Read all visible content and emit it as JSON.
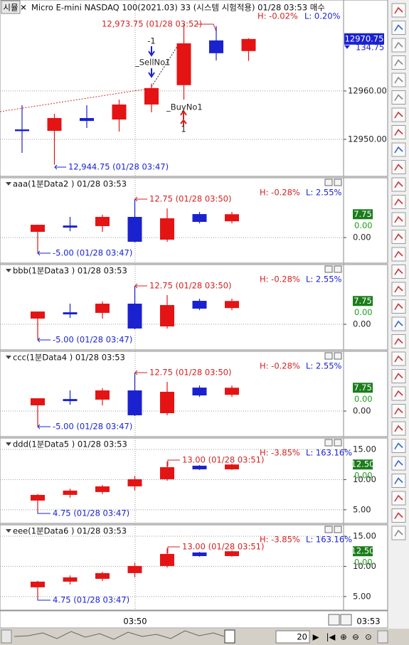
{
  "window": {
    "tab": "시뮬"
  },
  "chart_data": [
    {
      "type": "candlestick",
      "title": "Micro E-mini NASDAQ 100(2021.03) 33 (시스템 시험적용) 01/28 03:53 매수",
      "high_change": "H: -0.02%",
      "low_change": "L: 0.20%",
      "open": [
        12952.06,
        12951.76,
        12954.4,
        12954.1,
        12957.2,
        12961.2,
        12970.45,
        12968.25
      ],
      "high": [
        12957.06,
        12955.3,
        12957.06,
        12958.2,
        12961.5,
        12973.75,
        12973.4,
        12970.9
      ],
      "low": [
        12947.2,
        12944.75,
        12952.35,
        12951.6,
        12955.6,
        12958.2,
        12966.3,
        12966.2
      ],
      "close": [
        12951.76,
        12954.4,
        12953.8,
        12957.2,
        12960.6,
        12969.85,
        12967.8,
        12970.75
      ],
      "ylim": [
        12942.35,
        12978.8
      ],
      "yticks": [
        {
          "value": 12950,
          "label": "12950.00"
        },
        {
          "value": 12960,
          "label": "12960.00"
        }
      ],
      "last": {
        "value": 12970.75,
        "label": "12970.75"
      },
      "change": 134.75,
      "annotations": [
        "12,973.75 (01/28 03:52)",
        "12,944.75 (01/28 03:47)",
        "-1",
        "_SellNo1",
        "_BuyNo1",
        "1"
      ],
      "up_color": "#e41414",
      "down_color": "#1a22d0",
      "grid": true
    },
    {
      "type": "candlestick",
      "title": "aaa(1분Data2 ) 01/28 03:53",
      "high_change": "H: -0.28%",
      "low_change": "L: 2.55%",
      "open": [
        1.9,
        4.0,
        3.8,
        6.86,
        -0.7,
        7.8,
        5.4
      ],
      "high": [
        4.25,
        6.86,
        7.6,
        12.75,
        9.7,
        8.5,
        8.5
      ],
      "low": [
        -5,
        2.1,
        1.9,
        -1.65,
        -1.4,
        4.7,
        4.7
      ],
      "close": [
        4.25,
        3.3,
        6.86,
        -1.4,
        6.4,
        5.2,
        7.75
      ],
      "ylim": [
        -8.5,
        17.5
      ],
      "yticks": [
        {
          "value": 0,
          "label": "0.00"
        }
      ],
      "last": {
        "value": 7.75,
        "label": "7.75"
      },
      "signal": {
        "value": 0,
        "label": "0.00"
      },
      "annotations": [
        "12.75 (01/28 03:50)",
        "-5.00 (01/28 03:47)"
      ],
      "up_color": "#e41414",
      "down_color": "#1a22d0",
      "grid": true
    },
    {
      "type": "candlestick",
      "title": "bbb(1분Data3 ) 01/28 03:53",
      "high_change": "H: -0.28%",
      "low_change": "L: 2.55%",
      "open": [
        1.9,
        4.0,
        3.8,
        6.86,
        -0.7,
        7.8,
        5.4
      ],
      "high": [
        4.25,
        6.86,
        7.6,
        12.75,
        9.7,
        8.5,
        8.5
      ],
      "low": [
        -5,
        2.1,
        1.9,
        -1.65,
        -1.4,
        4.7,
        4.7
      ],
      "close": [
        4.25,
        3.3,
        6.86,
        -1.4,
        6.4,
        5.2,
        7.75
      ],
      "ylim": [
        -8.5,
        17.5
      ],
      "yticks": [
        {
          "value": 0,
          "label": "0.00"
        }
      ],
      "last": {
        "value": 7.75,
        "label": "7.75"
      },
      "signal": {
        "value": 0,
        "label": "0.00"
      },
      "annotations": [
        "12.75 (01/28 03:50)",
        "-5.00 (01/28 03:47)"
      ],
      "up_color": "#e41414",
      "down_color": "#1a22d0",
      "grid": true
    },
    {
      "type": "candlestick",
      "title": "ccc(1분Data4 ) 01/28 03:53",
      "high_change": "H: -0.28%",
      "low_change": "L: 2.55%",
      "open": [
        1.9,
        4.0,
        3.8,
        6.86,
        -0.7,
        7.8,
        5.4
      ],
      "high": [
        4.25,
        6.86,
        7.6,
        12.75,
        9.7,
        8.5,
        8.5
      ],
      "low": [
        -5,
        2.1,
        1.9,
        -1.65,
        -1.4,
        4.7,
        4.7
      ],
      "close": [
        4.25,
        3.3,
        6.86,
        -1.4,
        6.4,
        5.2,
        7.75
      ],
      "ylim": [
        -8.5,
        17.5
      ],
      "yticks": [
        {
          "value": 0,
          "label": "0.00"
        }
      ],
      "last": {
        "value": 7.75,
        "label": "7.75"
      },
      "signal": {
        "value": 0,
        "label": "0.00"
      },
      "annotations": [
        "12.75 (01/28 03:50)",
        "-5.00 (01/28 03:47)"
      ],
      "up_color": "#e41414",
      "down_color": "#1a22d0",
      "grid": true
    },
    {
      "type": "candlestick",
      "title": "ddd(1분Data5 ) 01/28 03:53",
      "high_change": "H: -3.85%",
      "low_change": "L: 163.16%",
      "open": [
        6.53,
        7.47,
        7.94,
        8.88,
        10.06,
        12.3,
        11.7
      ],
      "high": [
        7.6,
        8.5,
        9.1,
        10.6,
        13,
        12.4,
        12.6
      ],
      "low": [
        4.75,
        7.0,
        7.6,
        8.2,
        9.8,
        11.6,
        11.6
      ],
      "close": [
        7.47,
        8.18,
        8.88,
        10.06,
        12.06,
        11.7,
        12.5
      ],
      "ylim": [
        2.75,
        15.7
      ],
      "yticks": [
        {
          "value": 5,
          "label": "5.00"
        },
        {
          "value": 10,
          "label": "10.00"
        },
        {
          "value": 15,
          "label": "15.00"
        }
      ],
      "last": {
        "value": 12.5,
        "label": "12.50"
      },
      "signal": {
        "value": 0,
        "label": "0.00"
      },
      "annotations": [
        "13.00 (01/28 03:51)",
        "4.75 (01/28 03:47)"
      ],
      "up_color": "#e41414",
      "down_color": "#1a22d0",
      "grid": true
    },
    {
      "type": "candlestick",
      "title": "eee(1분Data6 ) 01/28 03:53",
      "high_change": "H: -3.85%",
      "low_change": "L: 163.16%",
      "open": [
        6.53,
        7.47,
        7.94,
        8.88,
        10.06,
        12.3,
        11.7
      ],
      "high": [
        7.6,
        8.5,
        9.1,
        10.6,
        13,
        12.4,
        12.6
      ],
      "low": [
        4.75,
        7.0,
        7.6,
        8.2,
        9.8,
        11.6,
        11.6
      ],
      "close": [
        7.47,
        8.18,
        8.88,
        10.06,
        12.06,
        11.7,
        12.5
      ],
      "ylim": [
        2.75,
        15.7
      ],
      "yticks": [
        {
          "value": 5,
          "label": "5.00"
        },
        {
          "value": 10,
          "label": "10.00"
        },
        {
          "value": 15,
          "label": "15.00"
        }
      ],
      "last": {
        "value": 12.5,
        "label": "12.50"
      },
      "signal": {
        "value": 0,
        "label": "0.00"
      },
      "annotations": [
        "13.00 (01/28 03:51)",
        "4.75 (01/28 03:47)"
      ],
      "up_color": "#e41414",
      "down_color": "#1a22d0",
      "grid": true
    }
  ],
  "x_axis": {
    "labels": [
      "03:50",
      "03:53"
    ]
  },
  "scroll": {
    "value": 20
  }
}
